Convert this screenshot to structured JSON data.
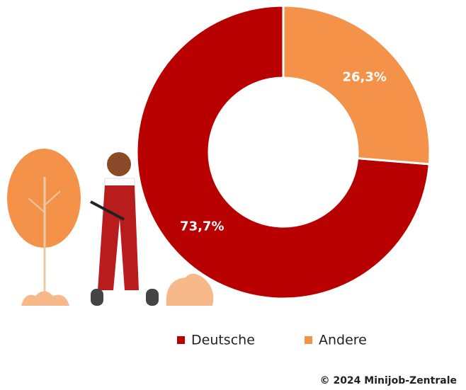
{
  "chart_data": {
    "type": "donut",
    "categories": [
      "Deutsche",
      "Andere"
    ],
    "values": [
      73.7,
      26.3
    ],
    "value_labels": [
      "73,7%",
      "26,3%"
    ],
    "colors": [
      "#b90000",
      "#f4924a"
    ],
    "legend": "bottom",
    "source": "© 2024 Minijob-Zentrale"
  }
}
